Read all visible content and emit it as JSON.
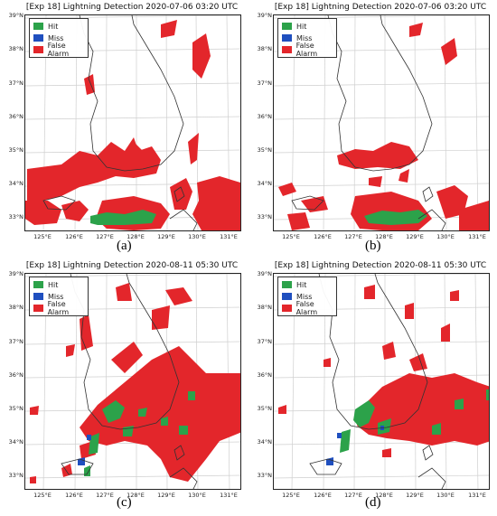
{
  "panels": [
    {
      "title": "[Exp 18] Lightning Detection 2020-07-06 03:20 UTC",
      "caption": "(a)",
      "legend": [
        "Hit",
        "Miss",
        "False Alarm"
      ],
      "lat_labels": [
        "39°N",
        "38°N",
        "37°N",
        "36°N",
        "35°N",
        "34°N",
        "33°N"
      ],
      "lon_labels": [
        "125°E",
        "126°E",
        "127°E",
        "128°E",
        "129°E",
        "130°E",
        "131°E"
      ]
    },
    {
      "title": "[Exp 18] Lightning Detection 2020-07-06 03:20 UTC",
      "caption": "(b)",
      "legend": [
        "Hit",
        "Miss",
        "False Alarm"
      ],
      "lat_labels": [
        "39°N",
        "38°N",
        "37°N",
        "36°N",
        "35°N",
        "34°N",
        "33°N"
      ],
      "lon_labels": [
        "125°E",
        "126°E",
        "127°E",
        "128°E",
        "129°E",
        "130°E",
        "131°E"
      ]
    },
    {
      "title": "[Exp 18] Lightning Detection 2020-08-11 05:30 UTC",
      "caption": "(c)",
      "legend": [
        "Hit",
        "Miss",
        "False Alarm"
      ],
      "lat_labels": [
        "39°N",
        "38°N",
        "37°N",
        "36°N",
        "35°N",
        "34°N",
        "33°N"
      ],
      "lon_labels": [
        "125°E",
        "126°E",
        "127°E",
        "128°E",
        "129°E",
        "130°E",
        "131°E"
      ]
    },
    {
      "title": "[Exp 18] Lightning Detection 2020-08-11 05:30 UTC",
      "caption": "(d)",
      "legend": [
        "Hit",
        "Miss",
        "False Alarm"
      ],
      "lat_labels": [
        "39°N",
        "38°N",
        "37°N",
        "36°N",
        "35°N",
        "34°N",
        "33°N"
      ],
      "lon_labels": [
        "125°E",
        "126°E",
        "127°E",
        "128°E",
        "129°E",
        "130°E",
        "131°E"
      ]
    }
  ],
  "colors": {
    "hit": "#2ca24a",
    "miss": "#1f4fbf",
    "false_alarm": "#e3262b",
    "coast": "#333333",
    "grid": "#cfcfcf"
  }
}
